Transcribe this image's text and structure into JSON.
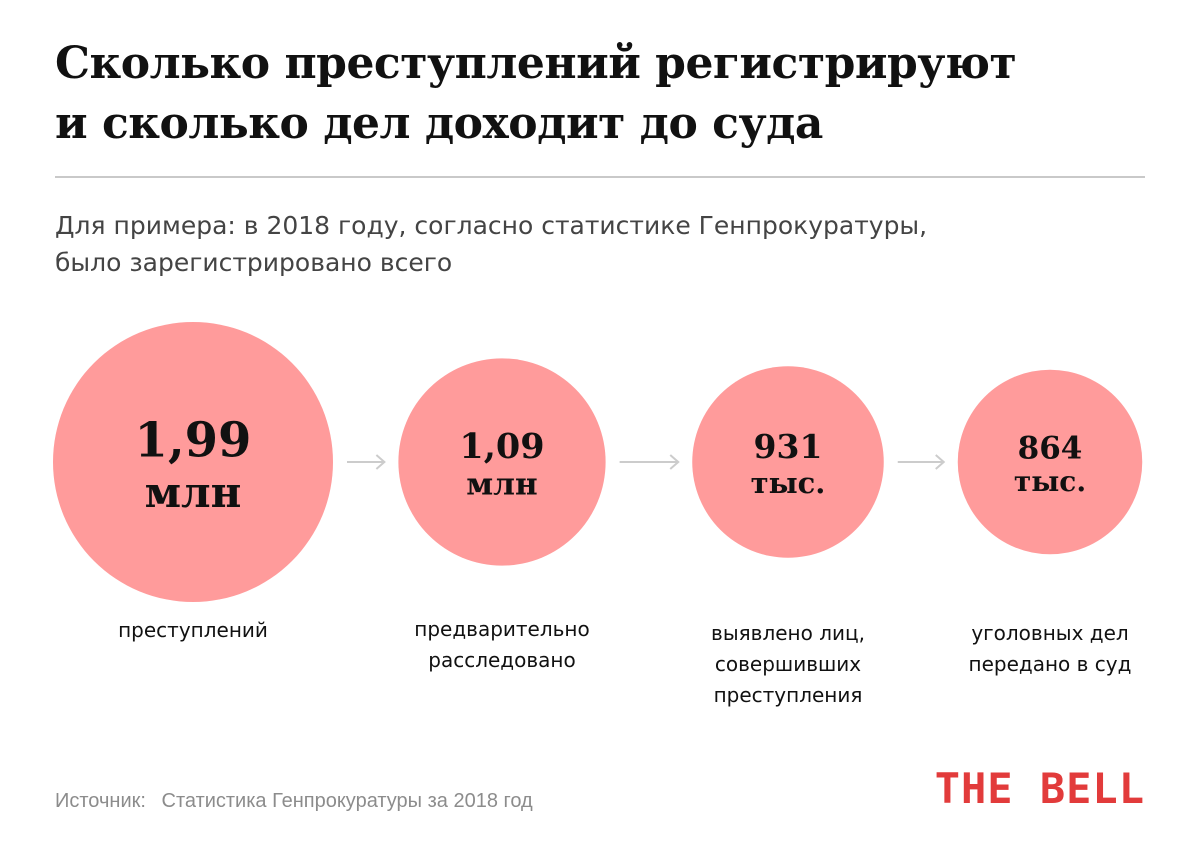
{
  "header": {
    "title_lines": [
      "Сколько преступлений регистрируют",
      "и сколько дел доходит до суда"
    ],
    "subtitle_lines": [
      "Для примера: в 2018 году, согласно статистике Генпрокуратуры,",
      "было зарегистрировано всего"
    ]
  },
  "chart_data": {
    "type": "bubble-flow",
    "circle_color": "#ff9b9b",
    "arrow_color": "#cccccc",
    "items": [
      {
        "value": 1990000,
        "number": "1,99",
        "unit": "млн",
        "label_lines": [
          "преступлений"
        ]
      },
      {
        "value": 1090000,
        "number": "1,09",
        "unit": "млн",
        "label_lines": [
          "предварительно",
          "расследовано"
        ]
      },
      {
        "value": 931000,
        "number": "931",
        "unit": "тыс.",
        "label_lines": [
          "выявлено лиц,",
          "совершивших",
          "преступления"
        ]
      },
      {
        "value": 864000,
        "number": "864",
        "unit": "тыс.",
        "label_lines": [
          "уголовных дел",
          "передано в суд"
        ]
      }
    ]
  },
  "footer": {
    "source_label": "Источник:",
    "source_text": "Статистика Генпрокуратуры за 2018 год",
    "logo": "THE BELL",
    "logo_color": "#e23b3b"
  }
}
